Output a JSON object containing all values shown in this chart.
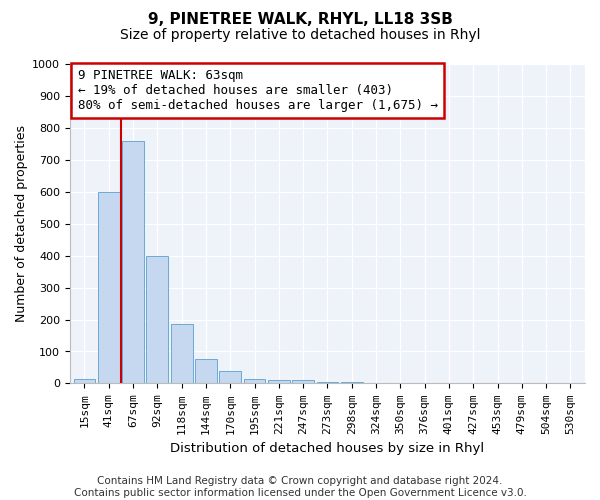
{
  "title1": "9, PINETREE WALK, RHYL, LL18 3SB",
  "title2": "Size of property relative to detached houses in Rhyl",
  "xlabel": "Distribution of detached houses by size in Rhyl",
  "ylabel": "Number of detached properties",
  "bar_labels": [
    "15sqm",
    "41sqm",
    "67sqm",
    "92sqm",
    "118sqm",
    "144sqm",
    "170sqm",
    "195sqm",
    "221sqm",
    "247sqm",
    "273sqm",
    "298sqm",
    "324sqm",
    "350sqm",
    "376sqm",
    "401sqm",
    "427sqm",
    "453sqm",
    "479sqm",
    "504sqm",
    "530sqm"
  ],
  "bar_values": [
    15,
    600,
    760,
    400,
    185,
    75,
    40,
    15,
    10,
    12,
    5,
    3,
    2,
    1,
    0,
    0,
    0,
    0,
    0,
    0,
    0
  ],
  "bar_color": "#c5d8ef",
  "bar_edgecolor": "#6aaad4",
  "annotation_line1": "9 PINETREE WALK: 63sqm",
  "annotation_line2": "← 19% of detached houses are smaller (403)",
  "annotation_line3": "80% of semi-detached houses are larger (1,675) →",
  "vline_x": 1.5,
  "vline_color": "#cc0000",
  "ylim": [
    0,
    1000
  ],
  "yticks": [
    0,
    100,
    200,
    300,
    400,
    500,
    600,
    700,
    800,
    900,
    1000
  ],
  "annotation_box_color": "#ffffff",
  "annotation_box_edgecolor": "#cc0000",
  "footnote": "Contains HM Land Registry data © Crown copyright and database right 2024.\nContains public sector information licensed under the Open Government Licence v3.0.",
  "bg_color": "#eef2f9",
  "grid_color": "#ffffff",
  "title1_fontsize": 11,
  "title2_fontsize": 10,
  "xlabel_fontsize": 9.5,
  "ylabel_fontsize": 9,
  "tick_fontsize": 8,
  "annotation_fontsize": 9,
  "footnote_fontsize": 7.5
}
